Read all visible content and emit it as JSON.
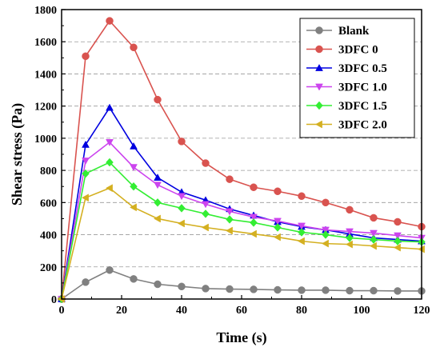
{
  "chart_data": {
    "type": "line",
    "xlabel": "Time (s)",
    "ylabel": "Shear stress (Pa)",
    "xlim": [
      0,
      120
    ],
    "ylim": [
      0,
      1800
    ],
    "xticks": [
      "0",
      "20",
      "40",
      "60",
      "80",
      "100",
      "120"
    ],
    "yticks": [
      "0",
      "200",
      "400",
      "600",
      "800",
      "1000",
      "1200",
      "1400",
      "1600",
      "1800"
    ],
    "grid": "horizontal-dashed",
    "legend_position": "top-right",
    "x": [
      0,
      8,
      16,
      24,
      32,
      40,
      48,
      56,
      64,
      72,
      80,
      88,
      96,
      104,
      112,
      120
    ],
    "series": [
      {
        "name": "Blank",
        "color": "#808080",
        "marker": "circle",
        "values": [
          0,
          105,
          180,
          125,
          92,
          78,
          65,
          62,
          60,
          57,
          55,
          55,
          52,
          52,
          50,
          50
        ]
      },
      {
        "name": "3DFC 0",
        "color": "#d9534f",
        "marker": "circle",
        "values": [
          0,
          1510,
          1730,
          1565,
          1240,
          980,
          845,
          745,
          695,
          670,
          640,
          600,
          555,
          505,
          480,
          450
        ]
      },
      {
        "name": "3DFC 0.5",
        "color": "#0000e0",
        "marker": "triangle-up",
        "values": [
          0,
          960,
          1190,
          950,
          755,
          665,
          615,
          560,
          520,
          480,
          450,
          430,
          405,
          380,
          370,
          360
        ]
      },
      {
        "name": "3DFC 1.0",
        "color": "#cc44ee",
        "marker": "triangle-down",
        "values": [
          0,
          860,
          975,
          820,
          710,
          640,
          590,
          545,
          510,
          485,
          455,
          430,
          420,
          410,
          395,
          380
        ]
      },
      {
        "name": "3DFC 1.5",
        "color": "#33ee33",
        "marker": "diamond",
        "values": [
          0,
          780,
          850,
          700,
          600,
          565,
          530,
          495,
          475,
          445,
          415,
          400,
          380,
          370,
          360,
          355
        ]
      },
      {
        "name": "3DFC 2.0",
        "color": "#d4b021",
        "marker": "triangle-left",
        "values": [
          0,
          630,
          690,
          570,
          500,
          470,
          445,
          425,
          405,
          385,
          360,
          345,
          340,
          330,
          320,
          310
        ]
      }
    ]
  }
}
